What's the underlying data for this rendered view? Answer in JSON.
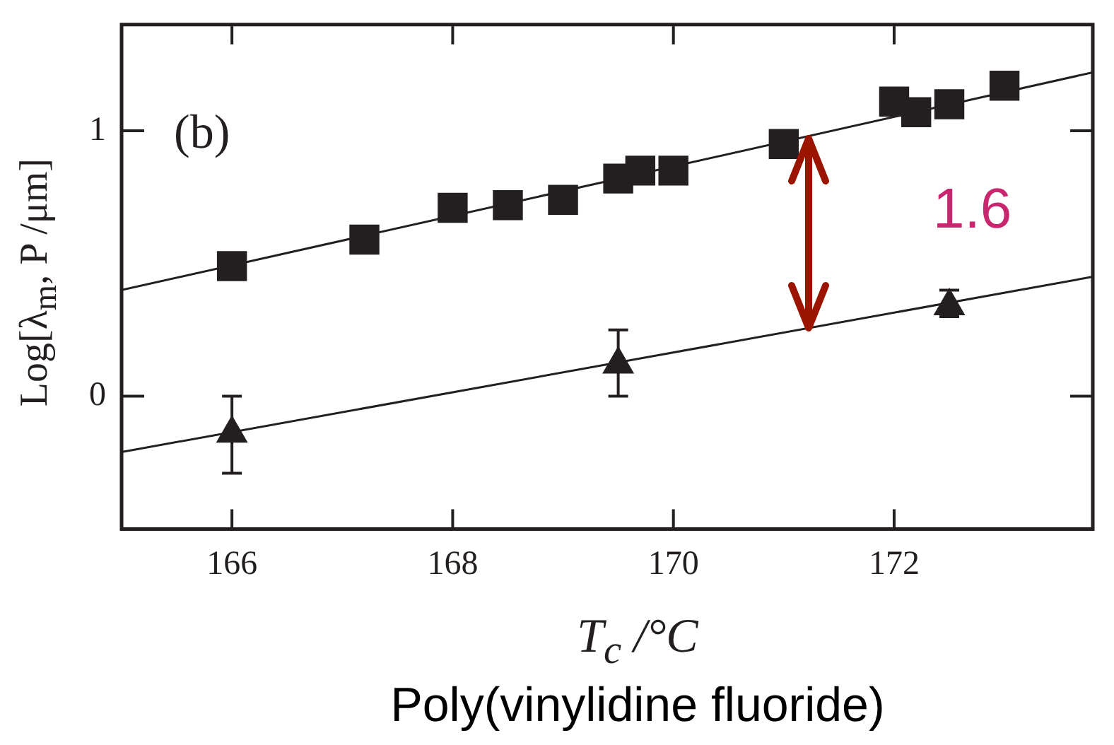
{
  "chart_data": {
    "type": "scatter",
    "xlabel": "T$_{c}$ /°C",
    "ylabel": "Log[λ$_{m}$, P /μm]",
    "annotations": [
      "(b)",
      "1.6",
      "Poly(vinylidine fluoride)"
    ],
    "xlim": [
      165,
      173.8
    ],
    "xticks": [
      166,
      168,
      170,
      172
    ],
    "ylim": [
      -0.5,
      1.4
    ],
    "yticks": [
      0,
      1
    ],
    "series": [
      {
        "marker": "square",
        "color": "#231f20",
        "x": [
          166,
          167.2,
          168,
          168.5,
          169,
          169.5,
          169.7,
          170,
          171,
          172,
          172.2,
          172.5,
          173
        ],
        "values": [
          0.49,
          0.59,
          0.71,
          0.72,
          0.74,
          0.82,
          0.85,
          0.85,
          0.95,
          1.11,
          1.07,
          1.1,
          1.17
        ]
      },
      {
        "marker": "triangle",
        "color": "#231f20",
        "x": [
          166,
          169.5,
          172.5
        ],
        "values": [
          -0.14,
          0.12,
          0.34
        ],
        "errors": [
          [
            -0.29,
            0.0
          ],
          [
            0.0,
            0.25
          ],
          [
            0.3,
            0.4
          ]
        ]
      },
      {
        "type": "line",
        "marker": "none",
        "color": "#231f20",
        "x": [
          165,
          173.8
        ],
        "values": [
          0.4,
          1.22
        ]
      },
      {
        "type": "line",
        "marker": "none",
        "color": "#231f20",
        "x": [
          165,
          173.8
        ],
        "values": [
          -0.21,
          0.45
        ]
      }
    ]
  }
}
